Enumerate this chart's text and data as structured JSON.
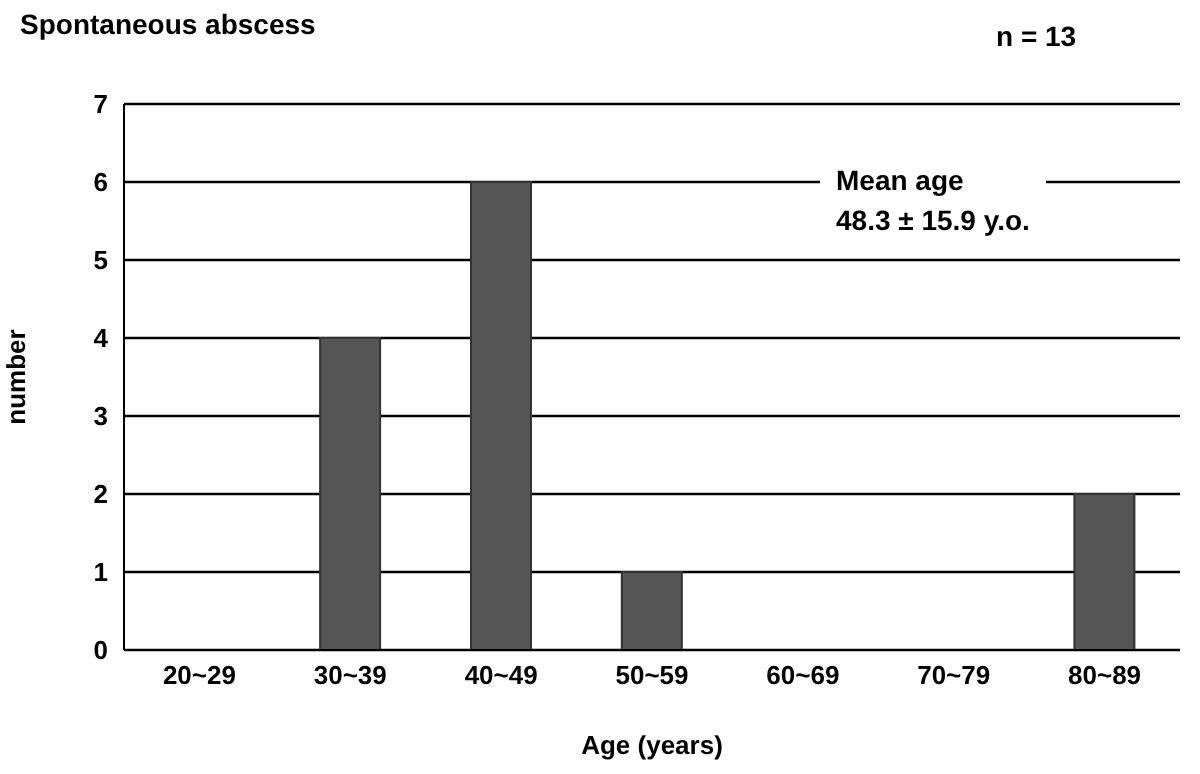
{
  "chart_data": {
    "type": "bar",
    "title": "Spontaneous abscess",
    "xlabel": "Age (years)",
    "ylabel": "number",
    "annotations": [
      "n = 13",
      "Mean age\n48.3 ± 15.9 y.o."
    ],
    "categories": [
      "20~29",
      "30~39",
      "40~49",
      "50~59",
      "60~69",
      "70~79",
      "80~89"
    ],
    "values": [
      0,
      4,
      6,
      1,
      0,
      0,
      2
    ],
    "color": "#555555",
    "ylim": [
      0,
      7
    ],
    "yticks": [
      0,
      1,
      2,
      3,
      4,
      5,
      6,
      7
    ],
    "grid": "y"
  }
}
